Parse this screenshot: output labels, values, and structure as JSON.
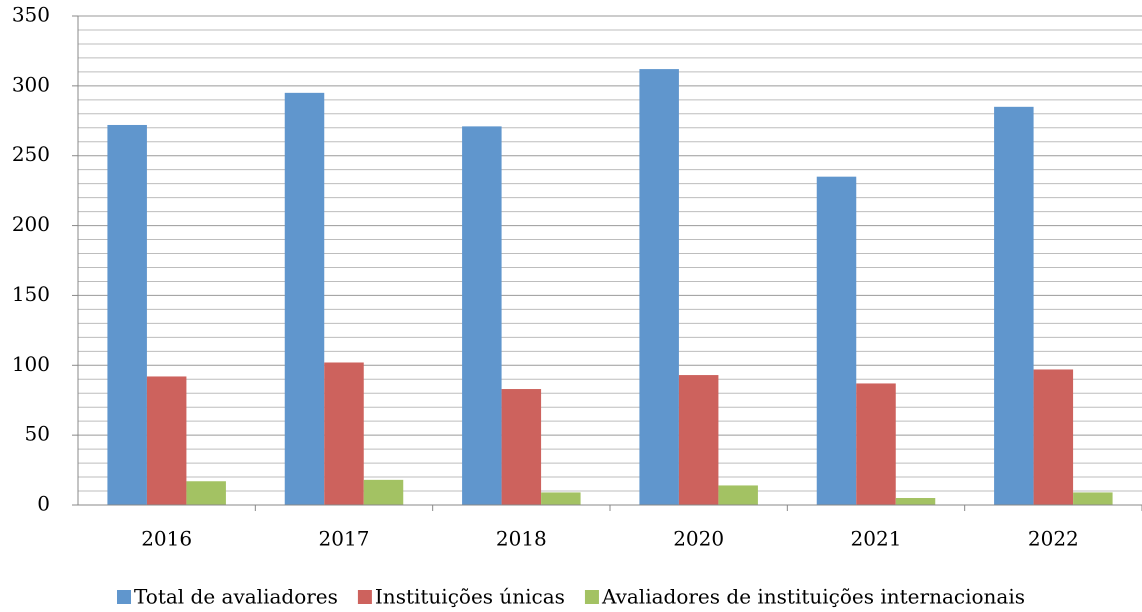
{
  "chart_data": {
    "type": "bar",
    "categories": [
      "2016",
      "2017",
      "2018",
      "2020",
      "2021",
      "2022"
    ],
    "series": [
      {
        "name": "Total de avaliadores",
        "color": "#6096cd",
        "values": [
          272,
          295,
          271,
          312,
          235,
          285
        ]
      },
      {
        "name": "Instituições únicas",
        "color": "#cd625d",
        "values": [
          92,
          102,
          83,
          93,
          87,
          97
        ]
      },
      {
        "name": "Avaliadores de instituições internacionais",
        "color": "#a3c263",
        "values": [
          17,
          18,
          9,
          14,
          5,
          9
        ]
      }
    ],
    "ylim": [
      0,
      350
    ],
    "yticks": [
      0,
      50,
      100,
      150,
      200,
      250,
      300,
      350
    ],
    "yminor_ticks": [
      10,
      20,
      30,
      40,
      60,
      70,
      80,
      90,
      110,
      120,
      130,
      140,
      160,
      170,
      180,
      190,
      210,
      220,
      230,
      240,
      260,
      270,
      280,
      290,
      310,
      320,
      330,
      340
    ],
    "grid": true,
    "legend": "bottom"
  }
}
